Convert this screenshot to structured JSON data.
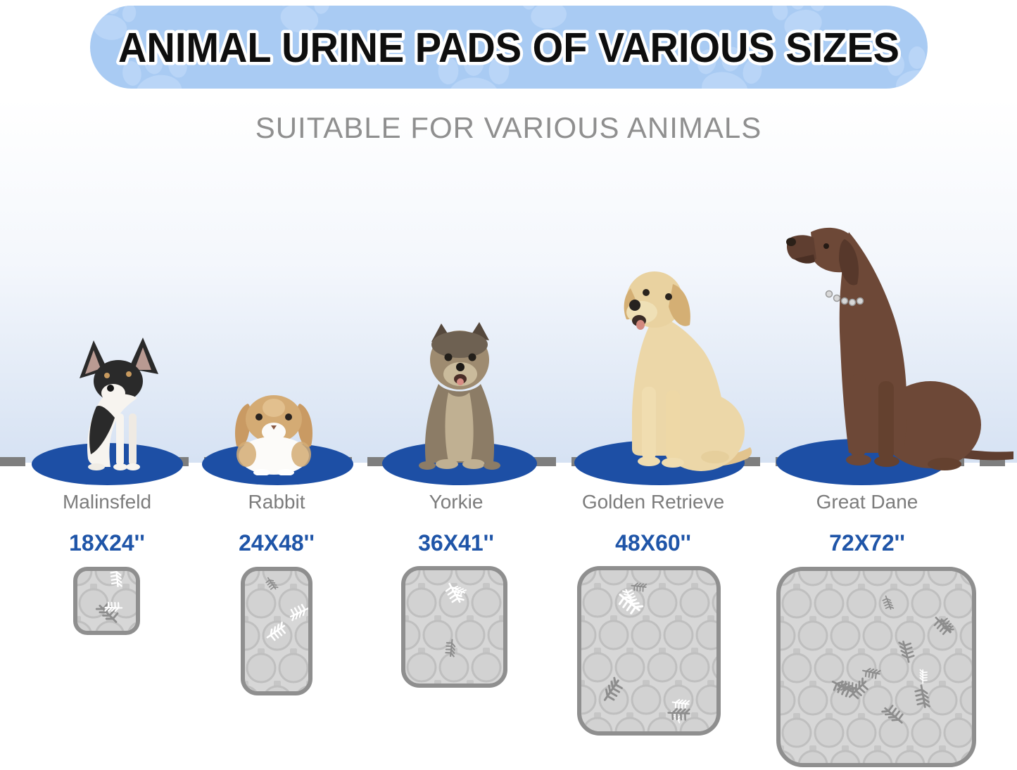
{
  "banner": {
    "title": "ANIMAL URINE PADS OF VARIOUS SIZES",
    "bg_color": "#a9cbf3",
    "paw_color": "#b9d5f7"
  },
  "subtitle": "SUITABLE FOR VARIOUS ANIMALS",
  "columns": [
    {
      "name": "Malinsfeld",
      "size": "18X24''"
    },
    {
      "name": "Rabbit",
      "size": "24X48''"
    },
    {
      "name": "Yorkie",
      "size": "36X41''"
    },
    {
      "name": "Golden Retrieve",
      "size": "48X60''"
    },
    {
      "name": "Great Dane",
      "size": "72X72''"
    }
  ],
  "icons": {
    "banner_decoration": "paw-print-icon"
  },
  "colors": {
    "size_text_blue": "#1f55a8",
    "oval_blue": "#1d4fa5",
    "label_gray": "#7c7c7c",
    "pad_fill": "#d7d7d7",
    "pad_border": "#8f8f8f",
    "dash_gray": "#7e7e7e"
  }
}
